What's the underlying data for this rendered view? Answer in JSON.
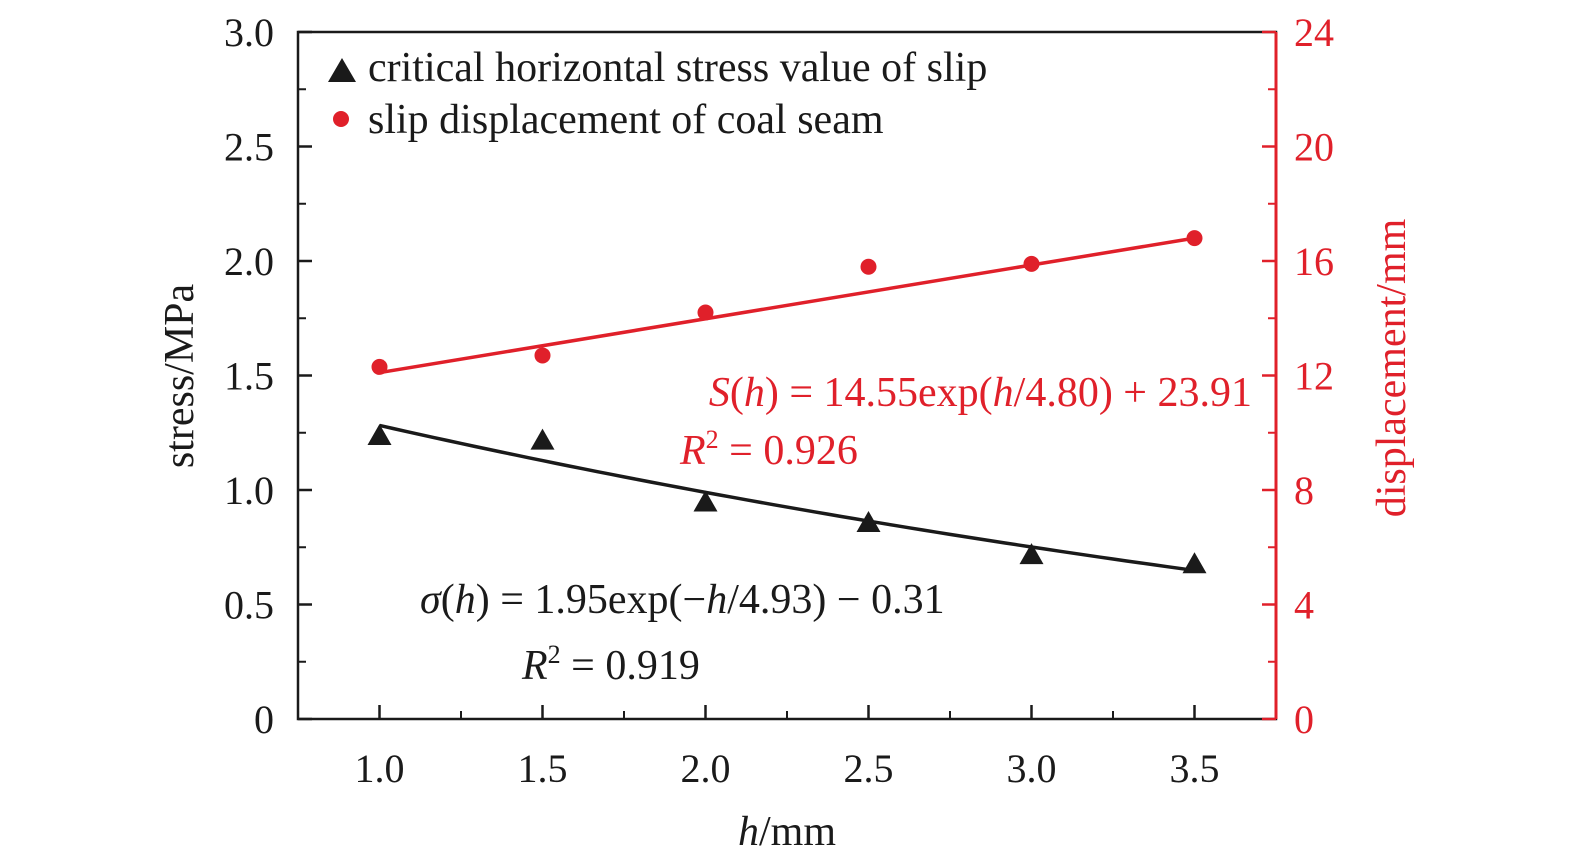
{
  "chart_data": {
    "type": "scatter",
    "x": [
      1.0,
      1.5,
      2.0,
      2.5,
      3.0,
      3.5
    ],
    "x_ticks": [
      "1.0",
      "1.5",
      "2.0",
      "2.5",
      "3.0",
      "3.5"
    ],
    "xlim": [
      0.75,
      3.75
    ],
    "xlabel": {
      "var": "h",
      "unit": "/mm"
    },
    "y_left": {
      "label": "stress/MPa",
      "lim": [
        0,
        3.0
      ],
      "ticks": [
        0,
        0.5,
        1.0,
        1.5,
        2.0,
        2.5,
        3.0
      ],
      "tick_labels": [
        "0",
        "0.5",
        "1.0",
        "1.5",
        "2.0",
        "2.5",
        "3.0"
      ],
      "color": "#1a1a1a"
    },
    "y_right": {
      "label": "displacement/mm",
      "lim": [
        0,
        24
      ],
      "ticks": [
        0,
        4,
        8,
        12,
        16,
        20,
        24
      ],
      "tick_labels": [
        "0",
        "4",
        "8",
        "12",
        "16",
        "20",
        "24"
      ],
      "color": "#e0202a"
    },
    "series": [
      {
        "name": "critical horizontal stress value of slip",
        "axis": "left",
        "marker": "triangle",
        "color": "#1a1a1a",
        "values": [
          1.24,
          1.22,
          0.95,
          0.86,
          0.72,
          0.68
        ],
        "fit_curve": {
          "a": 1.95,
          "k": -4.93,
          "c": -0.31
        },
        "equation": {
          "lhs_func": "σ",
          "lhs_var": "h",
          "rhs_pre": " = 1.95exp(−",
          "rhs_var": "h",
          "rhs_post": "/4.93) − 0.31",
          "r2_sym": "R",
          "r2_exp": "2",
          "r2_val": " = 0.919"
        }
      },
      {
        "name": "slip displacement of coal seam",
        "axis": "right",
        "marker": "circle",
        "color": "#e0202a",
        "values": [
          12.3,
          12.7,
          14.2,
          15.8,
          15.9,
          16.8
        ],
        "fit_line": [
          12.1,
          16.8
        ],
        "equation": {
          "lhs_func": "S",
          "lhs_var": "h",
          "rhs_pre": " = 14.55exp(",
          "rhs_var": "h",
          "rhs_post": "/4.80) + 23.91",
          "r2_sym": "R",
          "r2_exp": "2",
          "r2_val": " = 0.926"
        }
      }
    ],
    "legend_position": "top-left",
    "grid": false
  }
}
